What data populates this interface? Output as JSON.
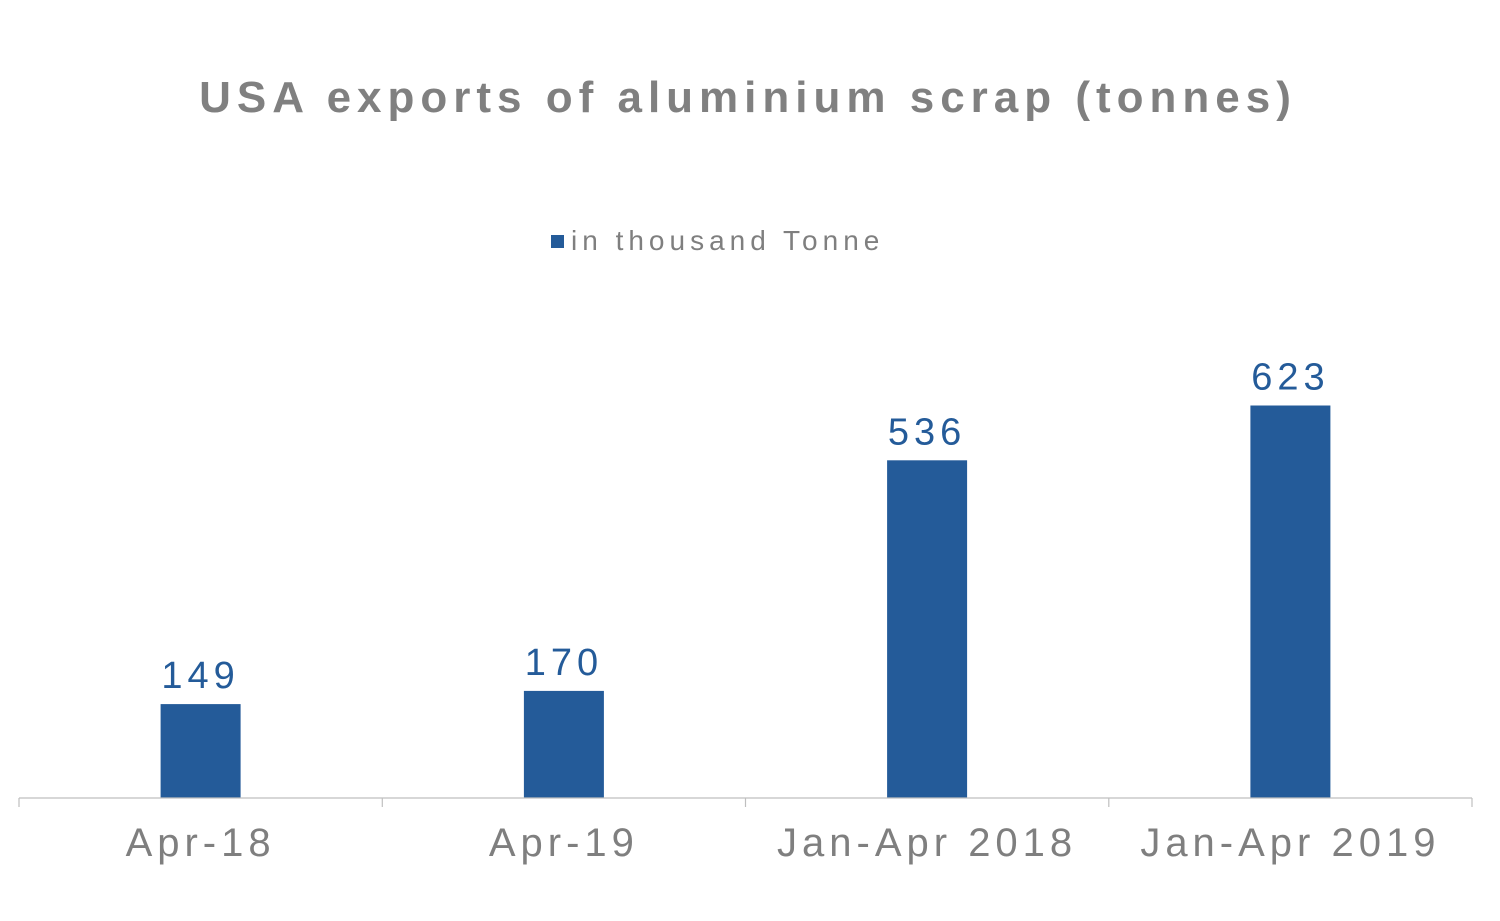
{
  "chart_data": {
    "type": "bar",
    "title": "USA exports of aluminium scrap (tonnes)",
    "categories": [
      "Apr-18",
      "Apr-19",
      "Jan-Apr 2018",
      "Jan-Apr 2019"
    ],
    "series": [
      {
        "name": "in thousand Tonne",
        "values": [
          149,
          170,
          536,
          623
        ],
        "color": "#245b99"
      }
    ],
    "data_labels": [
      "149",
      "170",
      "536",
      "623"
    ],
    "legend_position": "top-center",
    "grid": false,
    "ylim": [
      0,
      1000
    ],
    "xlabel": "",
    "ylabel": ""
  },
  "colors": {
    "bar": "#245b99",
    "title": "#808080",
    "tick_label": "#7f7f7f",
    "axis": "#bfbfbf",
    "data_label": "#245b99"
  }
}
